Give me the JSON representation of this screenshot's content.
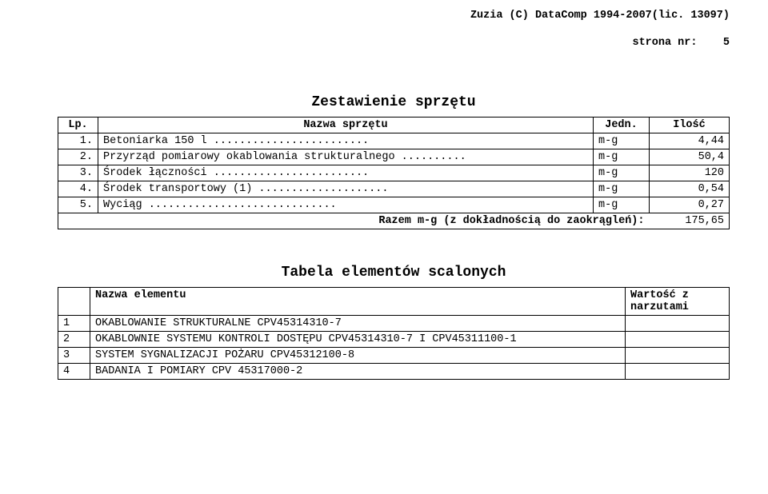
{
  "header": {
    "line1": "Zuzia (C) DataComp 1994-2007(lic. 13097)",
    "line2_label": "strona nr:",
    "line2_value": "5"
  },
  "equipment": {
    "title": "Zestawienie sprzętu",
    "columns": {
      "lp": "Lp.",
      "name": "Nazwa sprzętu",
      "unit": "Jedn.",
      "qty": "Ilość"
    },
    "rows": [
      {
        "lp": "1.",
        "name": "Betoniarka 150 l ........................",
        "unit": "m-g",
        "qty": "4,44"
      },
      {
        "lp": "2.",
        "name": "Przyrząd pomiarowy okablowania strukturalnego ..........",
        "unit": "m-g",
        "qty": "50,4"
      },
      {
        "lp": "3.",
        "name": "Środek łączności ........................",
        "unit": "m-g",
        "qty": "120"
      },
      {
        "lp": "4.",
        "name": "Środek transportowy (1) ....................",
        "unit": "m-g",
        "qty": "0,54"
      },
      {
        "lp": "5.",
        "name": "Wyciąg .............................",
        "unit": "m-g",
        "qty": "0,27"
      }
    ],
    "sum_label": "Razem m-g (z dokładnością do zaokrągleń):",
    "sum_value": "175,65"
  },
  "elements": {
    "title": "Tabela elementów scalonych",
    "columns": {
      "name": "Nazwa elementu",
      "value": "Wartość z narzutami"
    },
    "rows": [
      {
        "lp": "1",
        "name": "OKABLOWANIE STRUKTURALNE CPV45314310-7"
      },
      {
        "lp": "2",
        "name": "OKABLOWNIE SYSTEMU KONTROLI DOSTĘPU CPV45314310-7 I CPV45311100-1"
      },
      {
        "lp": "3",
        "name": "SYSTEM SYGNALIZACJI POŻARU CPV45312100-8"
      },
      {
        "lp": "4",
        "name": "BADANIA I POMIARY CPV 45317000-2"
      }
    ]
  }
}
